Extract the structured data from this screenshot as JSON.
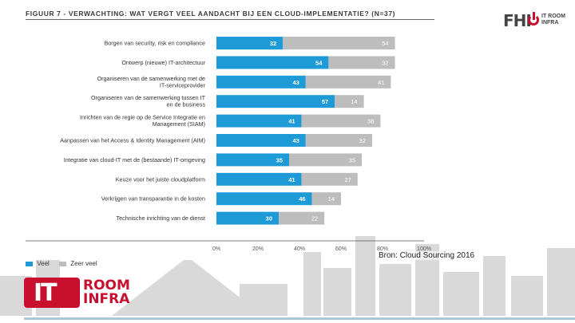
{
  "header": {
    "title": "FIGUUR 7 - VERWACHTING: WAT VERGT VEEL AANDACHT BIJ EEN CLOUD-IMPLEMENTATIE? (N=37)"
  },
  "logos": {
    "fhi_text": "FHI",
    "itroom_line1": "IT ROOM",
    "itroom_line2": "INFRA",
    "badge_text": "IT",
    "room_line1": "ROOM",
    "room_line2": "INFRA"
  },
  "source": "Bron: Cloud Sourcing 2016",
  "colors": {
    "veel": "#1e9bd7",
    "zeer_veel": "#bdbdbd",
    "brand_red": "#c8102e"
  },
  "chart_data": {
    "type": "bar",
    "orientation": "horizontal",
    "stacked": true,
    "title": "FIGUUR 7 - VERWACHTING: WAT VERGT VEEL AANDACHT BIJ EEN CLOUD-IMPLEMENTATIE? (N=37)",
    "categories": [
      [
        "Borgen van security, risk en compliance"
      ],
      [
        "Ontwerp (nieuwe) IT-architectuur"
      ],
      [
        "Organiseren van de samenwerking met de",
        "IT-serviceprovider"
      ],
      [
        "Organiseren van de samenwerking tussen IT",
        "en de business"
      ],
      [
        "Inrichten van de regie op de Service Integratie en",
        "Management (SIAM)"
      ],
      [
        "Aanpassen van het Access & Identity Management (AIM)"
      ],
      [
        "Integratie van cloud-IT met de (bestaande) IT-omgeving"
      ],
      [
        "Keuze voor het juiste cloudplatform"
      ],
      [
        "Verkrijgen van transparantie in de kosten"
      ],
      [
        "Technische inrichting van de dienst"
      ]
    ],
    "series": [
      {
        "name": "Veel",
        "values": [
          32,
          54,
          43,
          57,
          41,
          43,
          35,
          41,
          46,
          30
        ]
      },
      {
        "name": "Zeer veel",
        "values": [
          54,
          32,
          41,
          14,
          38,
          32,
          35,
          27,
          14,
          22
        ]
      }
    ],
    "x_ticks": [
      "0%",
      "20%",
      "40%",
      "60%",
      "80%",
      "100%"
    ],
    "xlim": [
      0,
      100
    ],
    "legend": "bottom-left",
    "grid": false
  }
}
